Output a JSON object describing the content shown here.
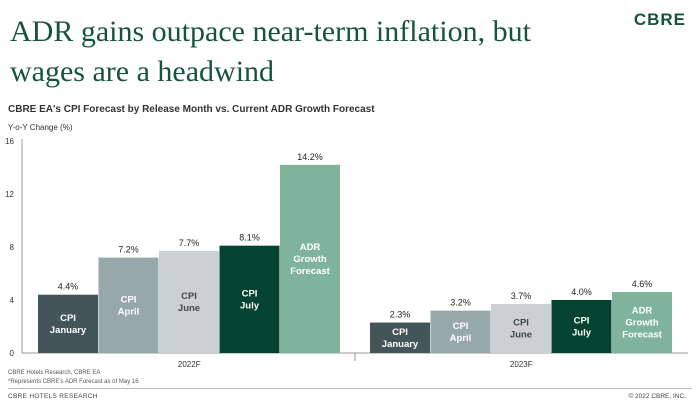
{
  "headline": "ADR gains outpace near-term inflation, but wages are a headwind",
  "logo": "CBRE",
  "footer": {
    "source": "CBRE Hotels Research, CBRE EA",
    "note": "*Represents CBRE's ADR Forecast as of May 16",
    "brand": "CBRE HOTELS RESEARCH",
    "copyright": "© 2022 CBRE, INC."
  },
  "chart_data": {
    "type": "bar",
    "title": "CBRE EA's CPI Forecast by Release Month vs. Current ADR Growth Forecast",
    "ylabel": "Y-o-Y Change (%)",
    "ylim": [
      0,
      16
    ],
    "yticks": [
      "0",
      "4",
      "8",
      "12",
      "16"
    ],
    "grid": false,
    "categories": [
      "2022F",
      "2023F"
    ],
    "series": [
      {
        "name": "CPI January",
        "color": "#435558",
        "values": [
          4.4,
          2.3
        ],
        "labels": [
          "4.4%",
          "2.3%"
        ]
      },
      {
        "name": "CPI April",
        "color": "#97a8ab",
        "values": [
          7.2,
          3.2
        ],
        "labels": [
          "7.2%",
          "3.2%"
        ]
      },
      {
        "name": "CPI June",
        "color": "#cbd1d3",
        "values": [
          7.7,
          3.7
        ],
        "labels": [
          "7.7%",
          "3.7%"
        ]
      },
      {
        "name": "CPI July",
        "color": "#03432f",
        "values": [
          8.1,
          4.0
        ],
        "labels": [
          "8.1%",
          "4.0%"
        ]
      },
      {
        "name": "ADR Growth Forecast",
        "color": "#7fb39b",
        "values": [
          14.2,
          4.6
        ],
        "labels": [
          "14.2%",
          "4.6%"
        ]
      }
    ]
  }
}
